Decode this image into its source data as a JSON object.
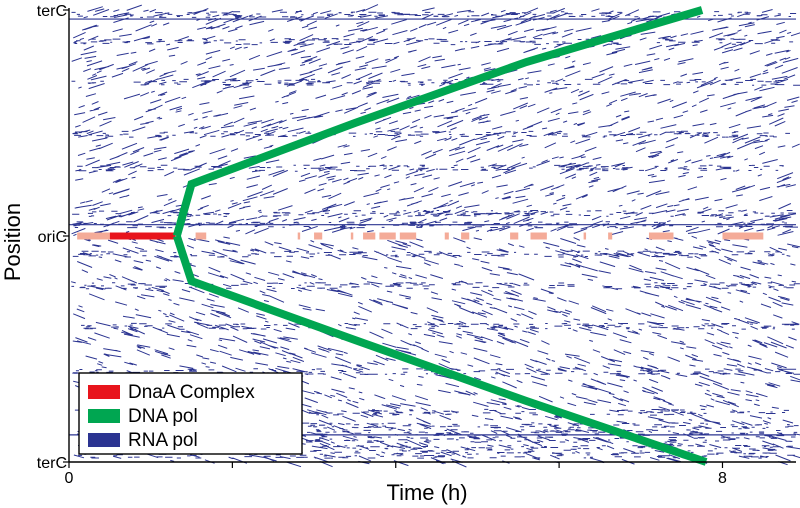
{
  "chart_data": {
    "type": "line",
    "xlabel": "Time (h)",
    "ylabel": "Position",
    "x_ticks": [
      {
        "value": 0,
        "label": "0"
      },
      {
        "value": 2,
        "label": ""
      },
      {
        "value": 4,
        "label": ""
      },
      {
        "value": 6,
        "label": ""
      },
      {
        "value": 8,
        "label": "8"
      }
    ],
    "y_ticks": [
      {
        "value": -1,
        "label": "terC"
      },
      {
        "value": 0,
        "label": "oriC"
      },
      {
        "value": 1,
        "label": "terC"
      }
    ],
    "xlim": [
      0,
      8.9
    ],
    "ylim": [
      -1,
      1
    ],
    "legend": {
      "placement": "bottom-left",
      "entries": [
        {
          "label": "DnaA Complex",
          "color": "#e8141c"
        },
        {
          "label": "DNA pol",
          "color": "#00a651"
        },
        {
          "label": "RNA pol",
          "color": "#2b3491"
        }
      ]
    },
    "series": [
      {
        "name": "DNA pol",
        "color": "#00a651",
        "points": [
          [
            1.32,
            0.0
          ],
          [
            1.5,
            0.23
          ],
          [
            3.5,
            0.5
          ],
          [
            5.6,
            0.77
          ],
          [
            7.75,
            1.0
          ]
        ]
      },
      {
        "name": "DNA pol",
        "color": "#00a651",
        "points": [
          [
            1.32,
            0.0
          ],
          [
            1.5,
            -0.2
          ],
          [
            3.5,
            -0.46
          ],
          [
            5.6,
            -0.73
          ],
          [
            7.8,
            -1.0
          ]
        ]
      }
    ],
    "dnaa_complex": {
      "color": "#e8141c",
      "light_color": "#f4ab98",
      "position": 0.0,
      "dark_segments": [
        [
          0.5,
          1.3
        ]
      ],
      "light_segments": [
        [
          0.1,
          0.5
        ],
        [
          1.3,
          1.35
        ],
        [
          1.55,
          1.68
        ],
        [
          2.8,
          2.83
        ],
        [
          3.0,
          3.1
        ],
        [
          3.45,
          3.48
        ],
        [
          3.6,
          3.75
        ],
        [
          3.8,
          4.0
        ],
        [
          4.05,
          4.25
        ],
        [
          4.6,
          4.65
        ],
        [
          4.8,
          4.9
        ],
        [
          5.4,
          5.5
        ],
        [
          5.65,
          5.85
        ],
        [
          6.3,
          6.33
        ],
        [
          6.6,
          6.65
        ],
        [
          7.1,
          7.4
        ],
        [
          8.0,
          8.5
        ]
      ]
    },
    "rna_pol": {
      "color": "#2b3491",
      "dense_bands": [
        0.98,
        0.86,
        0.68,
        0.45,
        0.3,
        0.1,
        0.05,
        -0.08,
        -0.22,
        -0.4,
        -0.6,
        -0.78,
        -0.84,
        -0.87,
        -0.9,
        -0.94,
        -0.97
      ],
      "solid_lines": [
        0.96,
        0.05,
        -0.88
      ]
    }
  }
}
